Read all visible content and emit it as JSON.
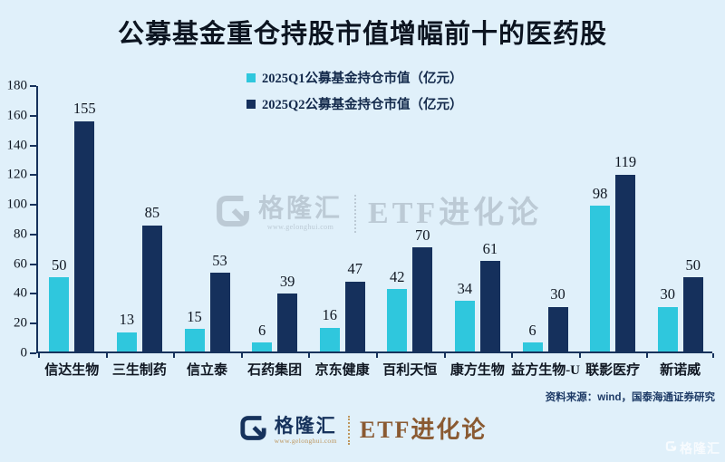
{
  "title": "公募基金重仓持股市值增幅前十的医药股",
  "chart_data": {
    "type": "bar",
    "title": "公募基金重仓持股市值增幅前十的医药股",
    "categories": [
      "信达生物",
      "三生制药",
      "信立泰",
      "石药集团",
      "京东健康",
      "百利天恒",
      "康方生物",
      "益方生物-U",
      "联影医疗",
      "新诺威"
    ],
    "series": [
      {
        "name": "2025Q1公募基金持仓市值（亿元）",
        "color": "#2fc7dd",
        "values": [
          50,
          13,
          15,
          6,
          16,
          42,
          34,
          6,
          98,
          30
        ]
      },
      {
        "name": "2025Q2公募基金持仓市值（亿元）",
        "color": "#15305c",
        "values": [
          155,
          85,
          53,
          39,
          47,
          70,
          61,
          30,
          119,
          50
        ]
      }
    ],
    "xlabel": "",
    "ylabel": "",
    "ylim": [
      0,
      180
    ],
    "ytick_step": 20,
    "grid": false,
    "legend_position": "top-center",
    "data_labels": true
  },
  "source_note": "资料来源：wind，国泰海通证券研究",
  "watermark_center": {
    "brand": "格隆汇",
    "url": "www.gelonghui.com",
    "product": "ETF进化论"
  },
  "footer": {
    "brand": "格隆汇",
    "url": "www.gelonghui.com",
    "product": "ETF进化论"
  },
  "watermark_corner": {
    "text": "格隆汇"
  },
  "colors": {
    "background": "#e0f0fa",
    "axis": "#16325c",
    "title_text": "#0c1420",
    "label_text": "#101722",
    "legend_text": "#13294b",
    "source_text": "#1d3a66",
    "brand_navy": "#16325c",
    "brand_gold": "#bd965e",
    "product_brown": "#8a5a32",
    "watermark_gray": "#b9c7d2",
    "series_q1": "#2fc7dd",
    "series_q2": "#15305c"
  }
}
